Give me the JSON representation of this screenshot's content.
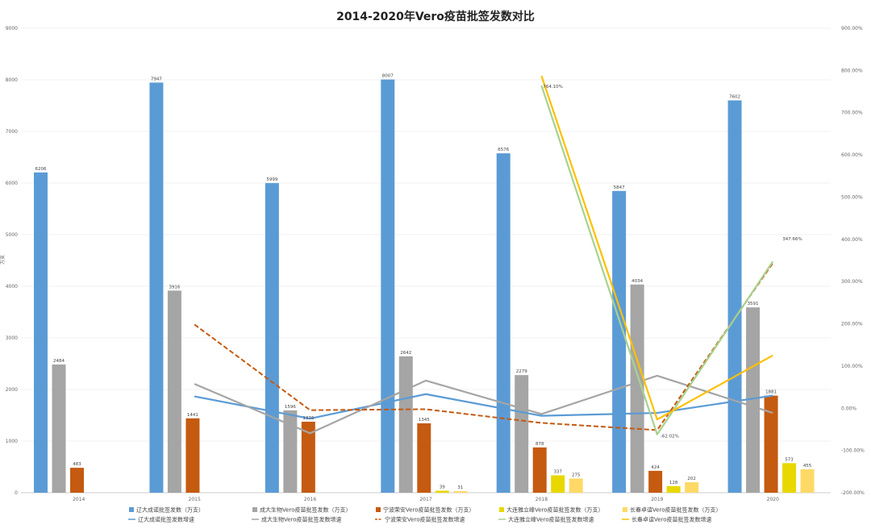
{
  "chart_data": {
    "type": "bar",
    "title": "2014-2020年Vero疫苗批签发数对比",
    "ylabel": "万支",
    "categories": [
      "2014",
      "2015",
      "2016",
      "2017",
      "2018",
      "2019",
      "2020"
    ],
    "ylim": [
      0,
      9000
    ],
    "yticks": [
      "0",
      "1000",
      "2000",
      "3000",
      "4000",
      "5000",
      "6000",
      "7000",
      "8000",
      "9000"
    ],
    "y2lim": [
      -200,
      900
    ],
    "y2ticks": [
      "-200.00%",
      "-100.00%",
      "0.00%",
      "100.00%",
      "200.00%",
      "300.00%",
      "400.00%",
      "500.00%",
      "600.00%",
      "700.00%",
      "800.00%",
      "900.00%"
    ],
    "grid": true,
    "legend_position": "bottom",
    "series": [
      {
        "name": "辽大成诺批签发数（万支）",
        "color": "#5B9BD5",
        "values": [
          6206,
          7947,
          5999,
          8007,
          6576,
          5847,
          7602
        ],
        "labels": [
          "6206",
          "7947",
          "5999",
          "8007",
          "6576",
          "5847",
          "7602"
        ]
      },
      {
        "name": "成大生物Vero疫苗批签发数（万支）",
        "color": "#A5A5A5",
        "values": [
          2484,
          3916,
          1596,
          2642,
          2279,
          4034,
          3591
        ],
        "labels": [
          "2484",
          "3916",
          "1596",
          "2642",
          "2279",
          "4034",
          "3591"
        ]
      },
      {
        "name": "宁波荣安Vero疫苗批签发数（万支）",
        "color": "#C55A11",
        "values": [
          483,
          1441,
          1376,
          1345,
          878,
          424,
          1881
        ],
        "labels": [
          "483",
          "1441",
          "1376",
          "1345",
          "878",
          "424",
          "1881"
        ]
      },
      {
        "name": "大连雅立峰Vero疫苗批签发数（万支）",
        "color": "#E8D800",
        "values": [
          null,
          null,
          null,
          39,
          337,
          128,
          573
        ],
        "labels": [
          "",
          "",
          "",
          "39",
          "337",
          "128",
          "573"
        ]
      },
      {
        "name": "长春卓谊Vero疫苗批签发数（万支）",
        "color": "#FFD966",
        "values": [
          null,
          null,
          null,
          31,
          275,
          202,
          455
        ],
        "labels": [
          "",
          "",
          "",
          "31",
          "275",
          "202",
          "455"
        ]
      }
    ],
    "growth_series": [
      {
        "name": "辽大成诺批签发数增速",
        "color": "#5B9BD5",
        "style": "solid",
        "values": [
          null,
          28.05,
          -24.51,
          33.47,
          -17.87,
          -11.09,
          30.02
        ]
      },
      {
        "name": "成大生物Vero疫苗批签发数增速",
        "color": "#A5A5A5",
        "style": "solid",
        "values": [
          null,
          57.65,
          -59.24,
          65.54,
          -13.74,
          77.01,
          -10.98
        ]
      },
      {
        "name": "宁波荣安Vero疫苗批签发数增速",
        "color": "#C55A11",
        "style": "dashed",
        "values": [
          null,
          198.34,
          -4.51,
          -2.25,
          -34.72,
          -51.71,
          343.63
        ]
      },
      {
        "name": "大连雅立峰Vero疫苗批签发数增速",
        "color": "#A9D18E",
        "style": "solid",
        "values": [
          null,
          null,
          null,
          null,
          764.1,
          -62.02,
          347.66
        ]
      },
      {
        "name": "长春卓谊Vero疫苗批签发数增速",
        "color": "#FFC000",
        "style": "solid",
        "values": [
          null,
          null,
          null,
          null,
          787.1,
          -26.55,
          125.25
        ]
      }
    ],
    "annotations": [
      "764.10%",
      "-62.02%",
      "347.66%"
    ]
  }
}
